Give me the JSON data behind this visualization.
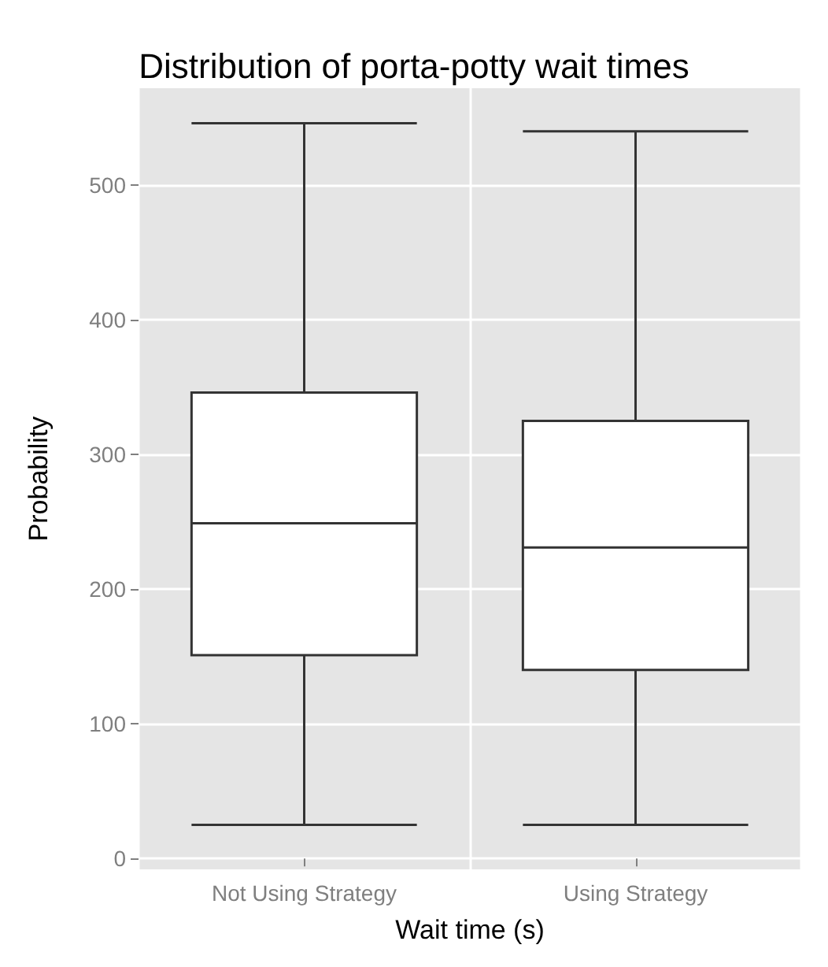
{
  "chart_data": {
    "type": "box",
    "title": "Distribution of porta-potty wait times",
    "xlabel": "Wait time (s)",
    "ylabel": "Probability",
    "categories": [
      "Not Using Strategy",
      "Using Strategy"
    ],
    "boxes": [
      {
        "low": 25,
        "q1": 151,
        "median": 249,
        "q3": 346,
        "high": 546
      },
      {
        "low": 25,
        "q1": 140,
        "median": 231,
        "q3": 325,
        "high": 540
      }
    ],
    "ylim": [
      -8,
      572
    ],
    "yticks": [
      0,
      100,
      200,
      300,
      400,
      500
    ],
    "grid": true
  }
}
